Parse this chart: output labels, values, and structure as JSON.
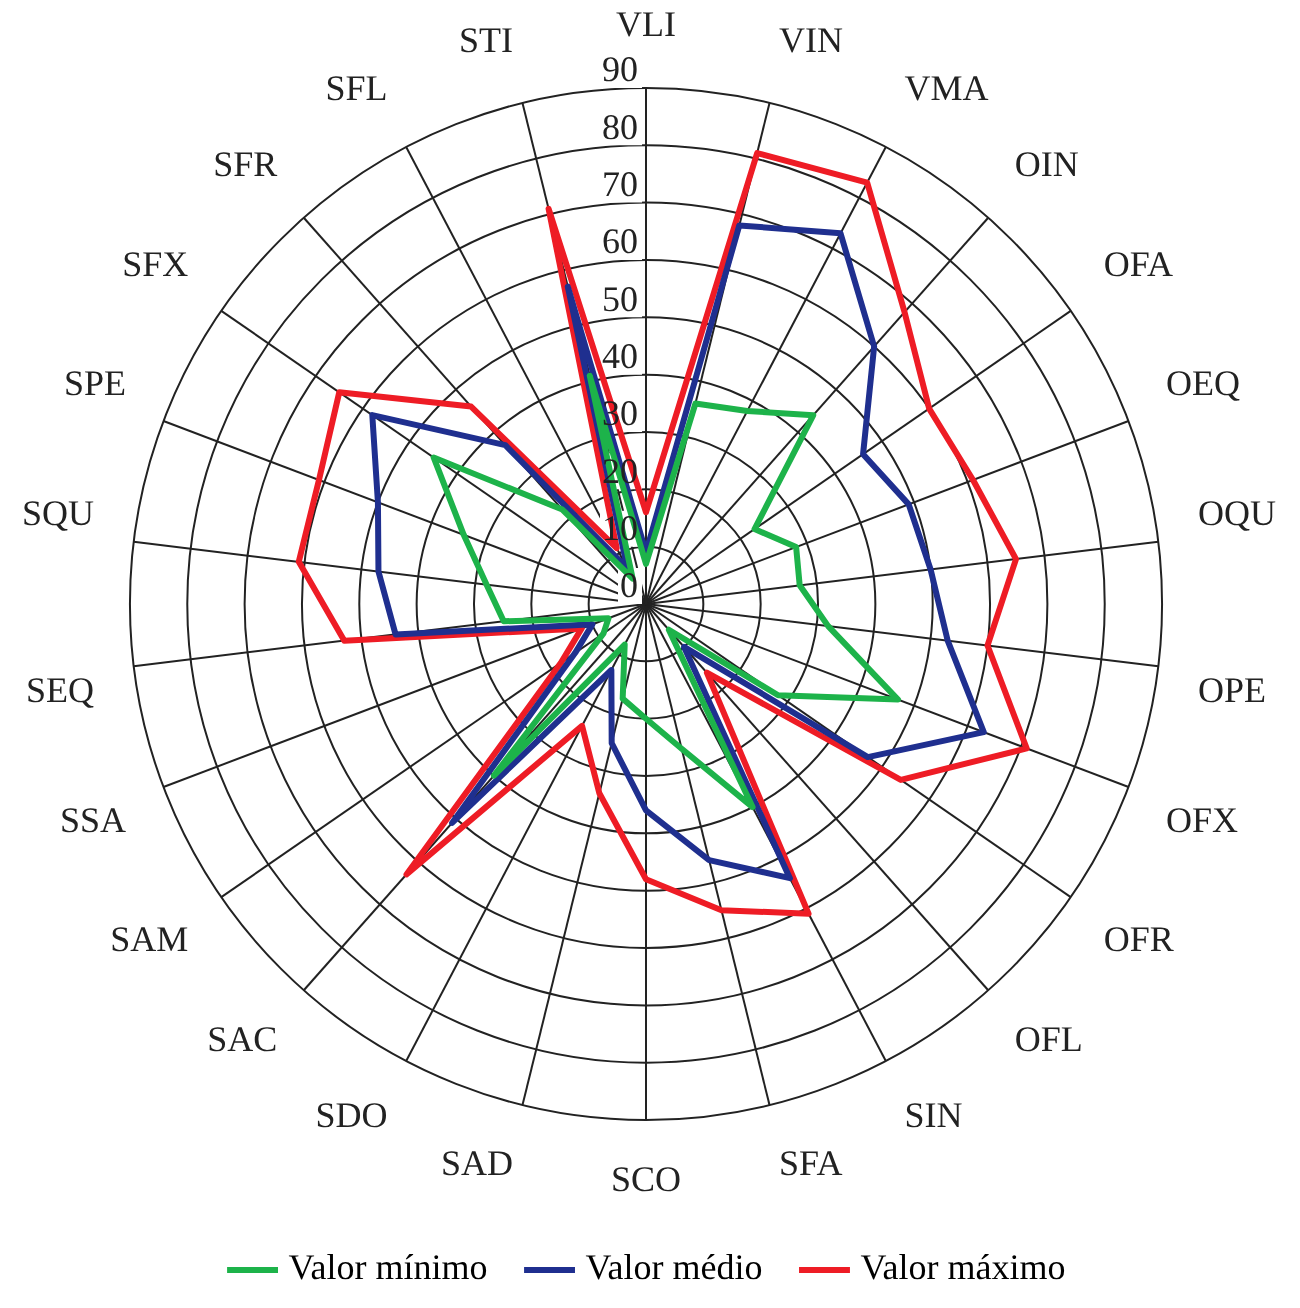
{
  "chart_data": {
    "type": "radar",
    "categories": [
      "VLI",
      "VIN",
      "VMA",
      "OIN",
      "OFA",
      "OEQ",
      "OQU",
      "OPE",
      "OFX",
      "OFR",
      "OFL",
      "SIN",
      "SFA",
      "SCO",
      "SAD",
      "SDO",
      "SAC",
      "SAM",
      "SSA",
      "SEQ",
      "SQU",
      "SPE",
      "SFX",
      "SFR",
      "SFL",
      "STI"
    ],
    "series": [
      {
        "name": "Valor mínimo",
        "color": "#1db34a",
        "values": [
          7,
          36,
          38,
          44,
          23,
          28,
          27,
          32,
          47,
          28,
          6,
          40,
          26,
          20,
          17,
          8,
          40,
          9,
          7,
          25,
          28,
          34,
          45,
          22,
          5,
          41
        ]
      },
      {
        "name": "Valor médio",
        "color": "#1f2f8f",
        "values": [
          9,
          68,
          73,
          60,
          46,
          49,
          50,
          53,
          63,
          47,
          10,
          54,
          46,
          36,
          25,
          13,
          51,
          15,
          10,
          44,
          47,
          50,
          58,
          37,
          7,
          57
        ]
      },
      {
        "name": "Valor máximo",
        "color": "#ee1c25",
        "values": [
          16,
          81,
          83,
          68,
          60,
          61,
          65,
          60,
          71,
          54,
          16,
          61,
          55,
          48,
          34,
          24,
          63,
          18,
          12,
          53,
          61,
          61,
          65,
          46,
          11,
          71
        ]
      }
    ],
    "ylim": [
      0,
      90
    ],
    "yticks": [
      0,
      10,
      20,
      30,
      40,
      50,
      60,
      70,
      80,
      90
    ],
    "grid": true,
    "legend": "bottom",
    "marker": "none",
    "line_style": "solid"
  }
}
